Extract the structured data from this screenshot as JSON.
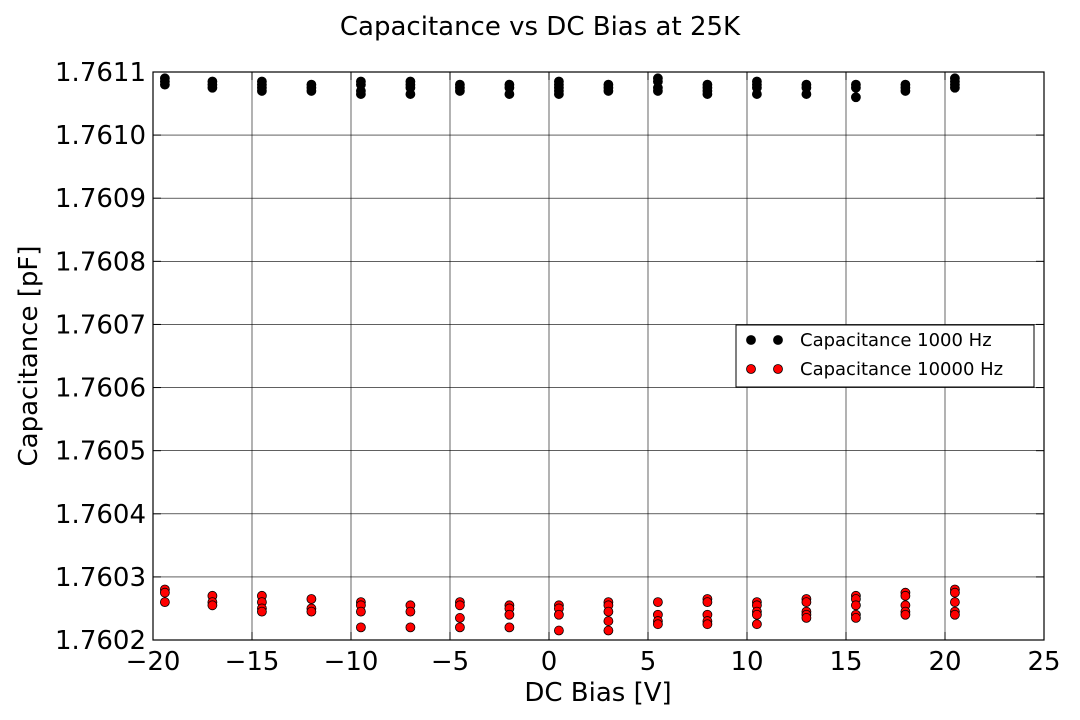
{
  "chart_data": {
    "type": "scatter",
    "title": "Capacitance vs DC Bias at 25K",
    "xlabel": "DC Bias [V]",
    "ylabel": "Capacitance [pF]",
    "xlim": [
      -20,
      25
    ],
    "ylim": [
      1.7602,
      1.7611
    ],
    "x_ticks": [
      -20,
      -15,
      -10,
      -5,
      0,
      5,
      10,
      15,
      20,
      25
    ],
    "x_tick_labels": [
      "−20",
      "−15",
      "−10",
      "−5",
      "0",
      "5",
      "10",
      "15",
      "20",
      "25"
    ],
    "y_ticks": [
      1.7602,
      1.7603,
      1.7604,
      1.7605,
      1.7606,
      1.7607,
      1.7608,
      1.7609,
      1.761,
      1.7611
    ],
    "y_tick_labels": [
      "1.7602",
      "1.7603",
      "1.7604",
      "1.7605",
      "1.7606",
      "1.7607",
      "1.7608",
      "1.7609",
      "1.7610",
      "1.7611"
    ],
    "grid": true,
    "legend_position": "center-right",
    "series": [
      {
        "name": "Capacitance 1000 Hz",
        "color": "#000000",
        "points": [
          [
            -19.4,
            1.76109
          ],
          [
            -19.4,
            1.761085
          ],
          [
            -19.4,
            1.76108
          ],
          [
            -17.0,
            1.761085
          ],
          [
            -17.0,
            1.76108
          ],
          [
            -17.0,
            1.761075
          ],
          [
            -14.5,
            1.761085
          ],
          [
            -14.5,
            1.76108
          ],
          [
            -14.5,
            1.761075
          ],
          [
            -14.5,
            1.76107
          ],
          [
            -12.0,
            1.76108
          ],
          [
            -12.0,
            1.761075
          ],
          [
            -12.0,
            1.76107
          ],
          [
            -9.5,
            1.761085
          ],
          [
            -9.5,
            1.76108
          ],
          [
            -9.5,
            1.76107
          ],
          [
            -9.5,
            1.761065
          ],
          [
            -7.0,
            1.761085
          ],
          [
            -7.0,
            1.76108
          ],
          [
            -7.0,
            1.761075
          ],
          [
            -7.0,
            1.761065
          ],
          [
            -4.5,
            1.76108
          ],
          [
            -4.5,
            1.761075
          ],
          [
            -4.5,
            1.76107
          ],
          [
            -2.0,
            1.76108
          ],
          [
            -2.0,
            1.761075
          ],
          [
            -2.0,
            1.761065
          ],
          [
            0.5,
            1.761085
          ],
          [
            0.5,
            1.76108
          ],
          [
            0.5,
            1.761075
          ],
          [
            0.5,
            1.76107
          ],
          [
            0.5,
            1.761065
          ],
          [
            3.0,
            1.76108
          ],
          [
            3.0,
            1.761075
          ],
          [
            3.0,
            1.76107
          ],
          [
            5.5,
            1.76109
          ],
          [
            5.5,
            1.761085
          ],
          [
            5.5,
            1.761075
          ],
          [
            5.5,
            1.76107
          ],
          [
            8.0,
            1.76108
          ],
          [
            8.0,
            1.761075
          ],
          [
            8.0,
            1.76107
          ],
          [
            8.0,
            1.761065
          ],
          [
            10.5,
            1.761085
          ],
          [
            10.5,
            1.76108
          ],
          [
            10.5,
            1.761075
          ],
          [
            10.5,
            1.761065
          ],
          [
            13.0,
            1.76108
          ],
          [
            13.0,
            1.761075
          ],
          [
            13.0,
            1.761065
          ],
          [
            15.5,
            1.76108
          ],
          [
            15.5,
            1.761075
          ],
          [
            15.5,
            1.76106
          ],
          [
            18.0,
            1.76108
          ],
          [
            18.0,
            1.761075
          ],
          [
            18.0,
            1.76107
          ],
          [
            20.5,
            1.76109
          ],
          [
            20.5,
            1.761085
          ],
          [
            20.5,
            1.76108
          ],
          [
            20.5,
            1.761075
          ]
        ]
      },
      {
        "name": "Capacitance 10000 Hz",
        "color": "#ff0000",
        "points": [
          [
            -19.4,
            1.76028
          ],
          [
            -19.4,
            1.760275
          ],
          [
            -19.4,
            1.76026
          ],
          [
            -17.0,
            1.76027
          ],
          [
            -17.0,
            1.76026
          ],
          [
            -17.0,
            1.760255
          ],
          [
            -14.5,
            1.76027
          ],
          [
            -14.5,
            1.76026
          ],
          [
            -14.5,
            1.76025
          ],
          [
            -14.5,
            1.760245
          ],
          [
            -12.0,
            1.760265
          ],
          [
            -12.0,
            1.76025
          ],
          [
            -12.0,
            1.760245
          ],
          [
            -9.5,
            1.76026
          ],
          [
            -9.5,
            1.760255
          ],
          [
            -9.5,
            1.760245
          ],
          [
            -9.5,
            1.76022
          ],
          [
            -7.0,
            1.760255
          ],
          [
            -7.0,
            1.760245
          ],
          [
            -7.0,
            1.76022
          ],
          [
            -4.5,
            1.76026
          ],
          [
            -4.5,
            1.760255
          ],
          [
            -4.5,
            1.760235
          ],
          [
            -4.5,
            1.76022
          ],
          [
            -2.0,
            1.760255
          ],
          [
            -2.0,
            1.76025
          ],
          [
            -2.0,
            1.76024
          ],
          [
            -2.0,
            1.76022
          ],
          [
            0.5,
            1.760255
          ],
          [
            0.5,
            1.76025
          ],
          [
            0.5,
            1.76024
          ],
          [
            0.5,
            1.760215
          ],
          [
            3.0,
            1.76026
          ],
          [
            3.0,
            1.760255
          ],
          [
            3.0,
            1.760245
          ],
          [
            3.0,
            1.76023
          ],
          [
            3.0,
            1.760215
          ],
          [
            5.5,
            1.76026
          ],
          [
            5.5,
            1.76024
          ],
          [
            5.5,
            1.76023
          ],
          [
            5.5,
            1.760225
          ],
          [
            8.0,
            1.760265
          ],
          [
            8.0,
            1.76026
          ],
          [
            8.0,
            1.76024
          ],
          [
            8.0,
            1.76023
          ],
          [
            8.0,
            1.760225
          ],
          [
            10.5,
            1.76026
          ],
          [
            10.5,
            1.760255
          ],
          [
            10.5,
            1.760245
          ],
          [
            10.5,
            1.76024
          ],
          [
            10.5,
            1.760225
          ],
          [
            13.0,
            1.760265
          ],
          [
            13.0,
            1.76026
          ],
          [
            13.0,
            1.760245
          ],
          [
            13.0,
            1.76024
          ],
          [
            13.0,
            1.760235
          ],
          [
            15.5,
            1.76027
          ],
          [
            15.5,
            1.760265
          ],
          [
            15.5,
            1.760255
          ],
          [
            15.5,
            1.76024
          ],
          [
            15.5,
            1.760235
          ],
          [
            18.0,
            1.760275
          ],
          [
            18.0,
            1.76027
          ],
          [
            18.0,
            1.760255
          ],
          [
            18.0,
            1.760245
          ],
          [
            18.0,
            1.76024
          ],
          [
            20.5,
            1.76028
          ],
          [
            20.5,
            1.760275
          ],
          [
            20.5,
            1.76026
          ],
          [
            20.5,
            1.760245
          ],
          [
            20.5,
            1.76024
          ]
        ]
      }
    ]
  }
}
